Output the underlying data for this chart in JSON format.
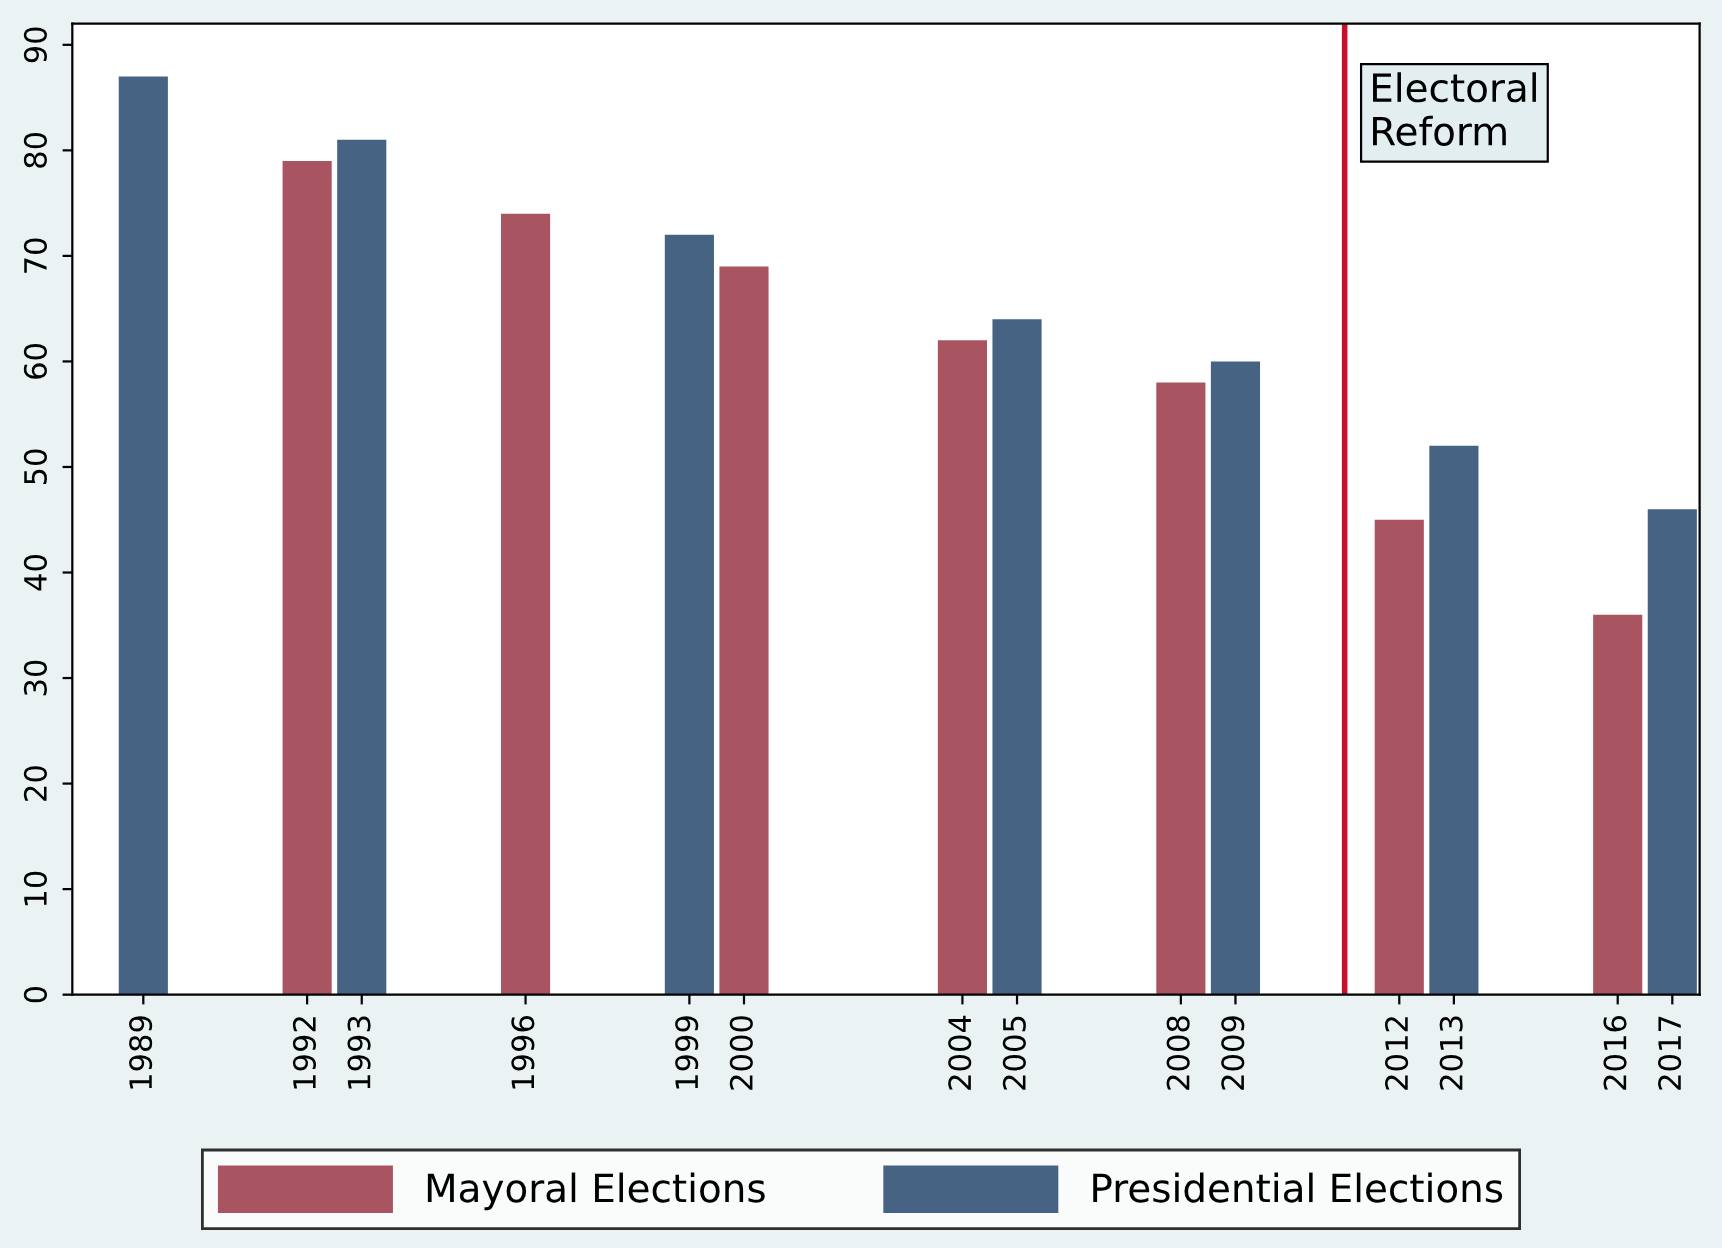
{
  "chart_data": {
    "type": "bar",
    "series": [
      {
        "name": "Mayoral Elections",
        "color": "#a85561",
        "x": [
          1992,
          1996,
          2000,
          2004,
          2008,
          2012,
          2016
        ],
        "values": [
          79,
          74,
          69,
          62,
          58,
          45,
          36
        ]
      },
      {
        "name": "Presidential Elections",
        "color": "#466384",
        "x": [
          1989,
          1993,
          1999,
          2005,
          2009,
          2013,
          2017
        ],
        "values": [
          87,
          81,
          72,
          64,
          60,
          52,
          46
        ]
      }
    ],
    "xlim": [
      1987.7,
      2017.5
    ],
    "xticks": [
      1989,
      1992,
      1993,
      1996,
      1999,
      2000,
      2004,
      2005,
      2008,
      2009,
      2012,
      2013,
      2016,
      2017
    ],
    "ylim": [
      0,
      92
    ],
    "yticks": [
      0,
      10,
      20,
      30,
      40,
      50,
      60,
      70,
      80,
      90
    ],
    "ref_lines": [
      {
        "axis": "x",
        "value": 2011,
        "label": "Electoral\nReform",
        "color": "#c8102e"
      }
    ],
    "grid": false,
    "legend": "bottom"
  }
}
